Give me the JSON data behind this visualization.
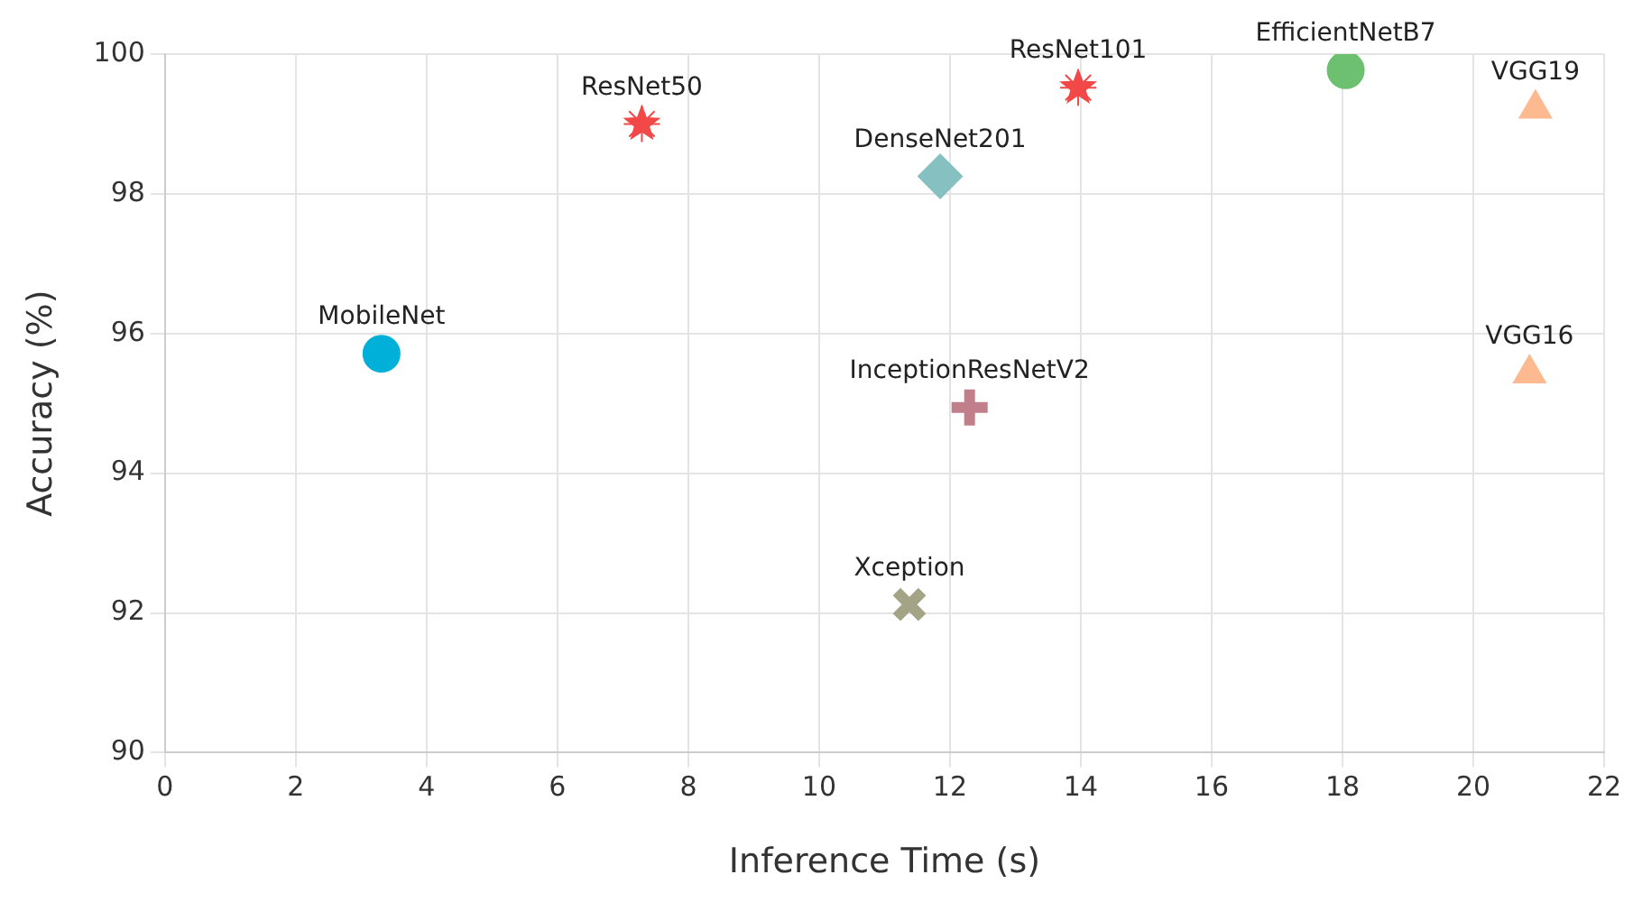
{
  "chart_data": {
    "type": "scatter",
    "xlabel": "Inference Time (s)",
    "ylabel": "Accuracy (%)",
    "xlim": [
      0,
      22
    ],
    "xticks": [
      0,
      2,
      4,
      6,
      8,
      10,
      12,
      14,
      16,
      18,
      20,
      22
    ],
    "ylim": [
      90,
      100
    ],
    "yticks": [
      90,
      92,
      94,
      96,
      98,
      100
    ],
    "grid": true,
    "legend": false,
    "series": [
      {
        "name": "MobileNet",
        "color": "#00b0d8",
        "marker": "circle",
        "x": [
          3.31
        ],
        "values": [
          95.71
        ]
      },
      {
        "name": "ResNet50",
        "color": "#f24848",
        "marker": "star",
        "x": [
          7.29
        ],
        "values": [
          99.0
        ]
      },
      {
        "name": "DenseNet201",
        "color": "#86c0c0",
        "marker": "diamond",
        "x": [
          11.85
        ],
        "values": [
          98.25
        ]
      },
      {
        "name": "ResNet101",
        "color": "#f24848",
        "marker": "star",
        "x": [
          13.96
        ],
        "values": [
          99.52
        ]
      },
      {
        "name": "EfficientNetB7",
        "color": "#6cc070",
        "marker": "circle",
        "x": [
          18.05
        ],
        "values": [
          99.77
        ]
      },
      {
        "name": "VGG19",
        "color": "#fdba91",
        "marker": "triangle",
        "x": [
          20.95
        ],
        "values": [
          99.22
        ]
      },
      {
        "name": "VGG16",
        "color": "#fdba91",
        "marker": "triangle",
        "x": [
          20.86
        ],
        "values": [
          95.43
        ]
      },
      {
        "name": "InceptionResNetV2",
        "color": "#c07f8a",
        "marker": "cross",
        "x": [
          12.3
        ],
        "values": [
          94.94
        ]
      },
      {
        "name": "Xception",
        "color": "#a3a486",
        "marker": "x",
        "x": [
          11.38
        ],
        "values": [
          92.12
        ]
      }
    ]
  }
}
